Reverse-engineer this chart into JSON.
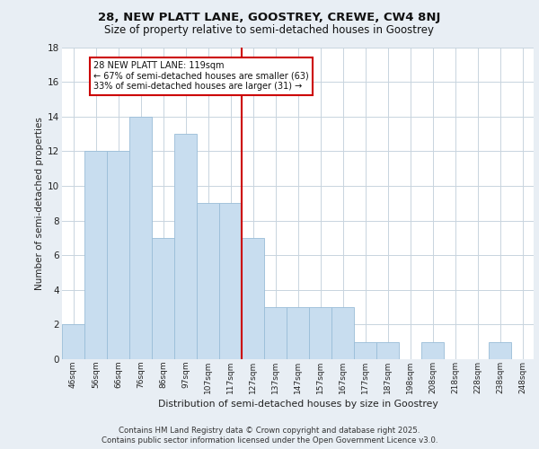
{
  "title1": "28, NEW PLATT LANE, GOOSTREY, CREWE, CW4 8NJ",
  "title2": "Size of property relative to semi-detached houses in Goostrey",
  "xlabel": "Distribution of semi-detached houses by size in Goostrey",
  "ylabel": "Number of semi-detached properties",
  "categories": [
    "46sqm",
    "56sqm",
    "66sqm",
    "76sqm",
    "86sqm",
    "97sqm",
    "107sqm",
    "117sqm",
    "127sqm",
    "137sqm",
    "147sqm",
    "157sqm",
    "167sqm",
    "177sqm",
    "187sqm",
    "198sqm",
    "208sqm",
    "218sqm",
    "228sqm",
    "238sqm",
    "248sqm"
  ],
  "values": [
    2,
    12,
    12,
    14,
    7,
    13,
    9,
    9,
    7,
    3,
    3,
    3,
    3,
    1,
    1,
    0,
    1,
    0,
    0,
    1,
    0
  ],
  "bar_color": "#c8ddef",
  "bar_edgecolor": "#9abdd8",
  "vline_index": 7,
  "vline_color": "#cc0000",
  "annotation_text": "28 NEW PLATT LANE: 119sqm\n← 67% of semi-detached houses are smaller (63)\n33% of semi-detached houses are larger (31) →",
  "annotation_box_color": "#ffffff",
  "annotation_box_edgecolor": "#cc0000",
  "ylim": [
    0,
    18
  ],
  "yticks": [
    0,
    2,
    4,
    6,
    8,
    10,
    12,
    14,
    16,
    18
  ],
  "footer1": "Contains HM Land Registry data © Crown copyright and database right 2025.",
  "footer2": "Contains public sector information licensed under the Open Government Licence v3.0.",
  "bg_color": "#e8eef4",
  "plot_bg_color": "#ffffff",
  "grid_color": "#c8d4de"
}
